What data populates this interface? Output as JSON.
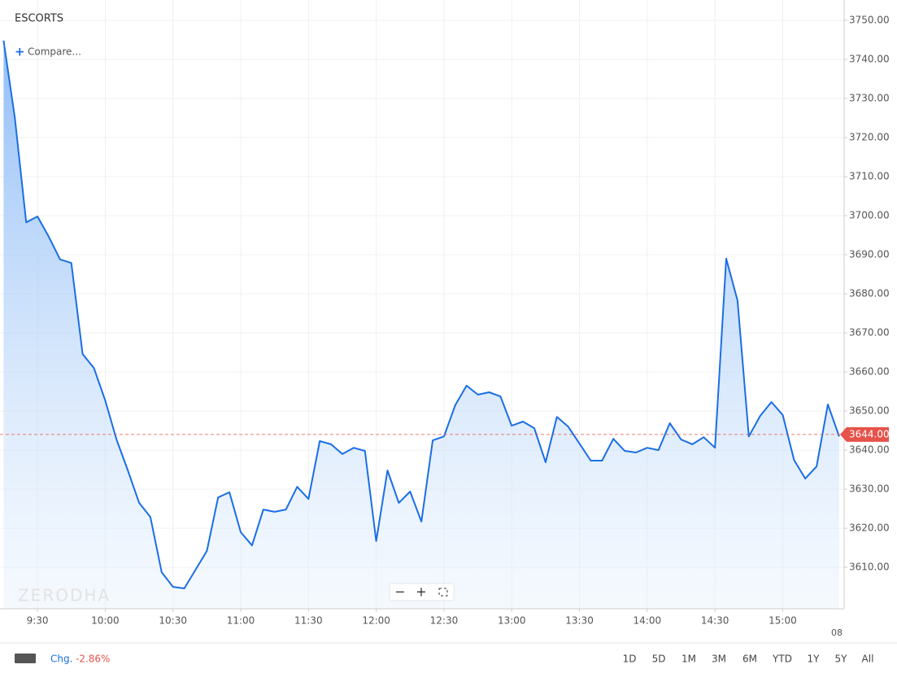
{
  "header": {
    "symbol": "ESCORTS",
    "compare": "Compare...",
    "watermark": "ZERODHA"
  },
  "chart_data": {
    "type": "area",
    "x": [
      555,
      560,
      565,
      570,
      575,
      580,
      585,
      590,
      595,
      600,
      605,
      610,
      615,
      620,
      625,
      630,
      635,
      640,
      645,
      650,
      655,
      660,
      665,
      670,
      675,
      680,
      685,
      690,
      695,
      700,
      705,
      710,
      715,
      720,
      725,
      730,
      735,
      740,
      745,
      750,
      755,
      760,
      765,
      770,
      775,
      780,
      785,
      790,
      795,
      800,
      805,
      810,
      815,
      820,
      825,
      830,
      835,
      840,
      845,
      850,
      855,
      860,
      865,
      870,
      875,
      880,
      885,
      890,
      895,
      900,
      905,
      910,
      915,
      920,
      925
    ],
    "values": [
      3744.8,
      3725,
      3698.3,
      3699.8,
      3694.6,
      3688.8,
      3687.9,
      3664.6,
      3661,
      3652.7,
      3642.7,
      3634.8,
      3626.5,
      3622.9,
      3608.75,
      3605,
      3604.6,
      3609.4,
      3614.2,
      3627.9,
      3629.2,
      3619,
      3615.6,
      3624.8,
      3624.2,
      3624.8,
      3630.6,
      3627.5,
      3642.3,
      3641.5,
      3639,
      3640.6,
      3639.8,
      3616.7,
      3634.8,
      3626.5,
      3629.4,
      3621.7,
      3642.5,
      3643.5,
      3651.5,
      3656.5,
      3654.2,
      3654.8,
      3653.75,
      3646.25,
      3647.3,
      3645.6,
      3636.9,
      3648.5,
      3646,
      3641.7,
      3637.3,
      3637.3,
      3642.9,
      3639.8,
      3639.4,
      3640.6,
      3640,
      3646.9,
      3642.7,
      3641.5,
      3643.3,
      3640.6,
      3689,
      3678.3,
      3643.5,
      3648.75,
      3652.3,
      3649,
      3637.5,
      3632.7,
      3635.8,
      3651.7,
      3643.5
    ],
    "color": "#1a6ee6",
    "xlim": [
      553.4,
      927.2
    ],
    "ylim": [
      3599.4,
      3755.2
    ],
    "xticks": [
      {
        "value": 570,
        "label": "9:30"
      },
      {
        "value": 600,
        "label": "10:00"
      },
      {
        "value": 630,
        "label": "10:30"
      },
      {
        "value": 660,
        "label": "11:00"
      },
      {
        "value": 690,
        "label": "11:30"
      },
      {
        "value": 720,
        "label": "12:00"
      },
      {
        "value": 750,
        "label": "12:30"
      },
      {
        "value": 780,
        "label": "13:00"
      },
      {
        "value": 810,
        "label": "13:30"
      },
      {
        "value": 840,
        "label": "14:00"
      },
      {
        "value": 870,
        "label": "14:30"
      },
      {
        "value": 900,
        "label": "15:00"
      }
    ],
    "yticks": [
      {
        "value": 3610,
        "label": "3610.00"
      },
      {
        "value": 3620,
        "label": "3620.00"
      },
      {
        "value": 3630,
        "label": "3630.00"
      },
      {
        "value": 3640,
        "label": "3640.00"
      },
      {
        "value": 3650,
        "label": "3650.00"
      },
      {
        "value": 3660,
        "label": "3660.00"
      },
      {
        "value": 3670,
        "label": "3670.00"
      },
      {
        "value": 3680,
        "label": "3680.00"
      },
      {
        "value": 3690,
        "label": "3690.00"
      },
      {
        "value": 3700,
        "label": "3700.00"
      },
      {
        "value": 3710,
        "label": "3710.00"
      },
      {
        "value": 3720,
        "label": "3720.00"
      },
      {
        "value": 3730,
        "label": "3730.00"
      },
      {
        "value": 3740,
        "label": "3740.00"
      },
      {
        "value": 3750,
        "label": "3750.00"
      }
    ],
    "grid": true,
    "last_price": {
      "value": 3644,
      "label": "3644.00"
    },
    "next_tick_label": "08"
  },
  "zoom_controls": [
    "−",
    "+"
  ],
  "footer": {
    "change_label": "Chg.",
    "change_value": "-2.86%",
    "ranges": [
      "1D",
      "5D",
      "1M",
      "3M",
      "6M",
      "YTD",
      "1Y",
      "5Y",
      "All"
    ]
  }
}
